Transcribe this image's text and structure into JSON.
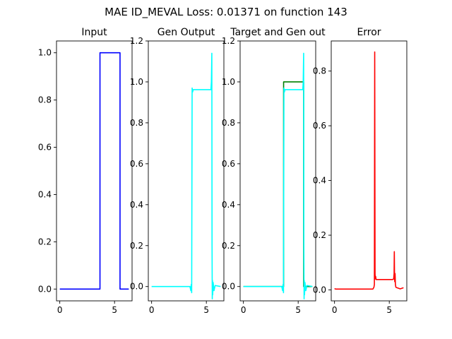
{
  "figure_title": "MAE ID_MEVAL Loss: 0.01371 on function 143",
  "chart_data": [
    {
      "type": "line",
      "title": "Input",
      "xlabel": "",
      "ylabel": "",
      "xlim": [
        -0.3,
        6.6
      ],
      "ylim": [
        -0.05,
        1.05
      ],
      "xticks": [
        0,
        5
      ],
      "xtick_labels": [
        "0",
        "5"
      ],
      "yticks": [
        0.0,
        0.2,
        0.4,
        0.6,
        0.8,
        1.0
      ],
      "ytick_labels": [
        "0.0",
        "0.2",
        "0.4",
        "0.6",
        "0.8",
        "1.0"
      ],
      "grid": false,
      "series": [
        {
          "color": "#0000ff",
          "x": [
            0,
            3.67,
            3.67,
            5.5,
            5.5,
            6.3
          ],
          "y": [
            0,
            0,
            1,
            1,
            0,
            0
          ]
        }
      ]
    },
    {
      "type": "line",
      "title": "Gen Output",
      "xlabel": "",
      "ylabel": "",
      "xlim": [
        -0.3,
        6.6
      ],
      "ylim": [
        -0.07,
        1.2
      ],
      "xticks": [
        0,
        5
      ],
      "xtick_labels": [
        "0",
        "5"
      ],
      "yticks": [
        0.0,
        0.2,
        0.4,
        0.6,
        0.8,
        1.0,
        1.2
      ],
      "ytick_labels": [
        "0.0",
        "0.2",
        "0.4",
        "0.6",
        "0.8",
        "1.0",
        "1.2"
      ],
      "grid": false,
      "series": [
        {
          "color": "#00ffff",
          "x": [
            0,
            3.5,
            3.58,
            3.62,
            3.66,
            3.7,
            3.74,
            3.8,
            3.9,
            5.3,
            5.42,
            5.46,
            5.5,
            5.52,
            5.54,
            5.56,
            5.58,
            5.62,
            5.7,
            5.8,
            6.3
          ],
          "y": [
            0,
            0,
            -0.02,
            0.01,
            -0.03,
            0.97,
            0.95,
            0.962,
            0.962,
            0.962,
            0.962,
            1.0,
            1.14,
            0.2,
            -0.06,
            0.03,
            -0.04,
            0.02,
            -0.02,
            0.005,
            0
          ]
        }
      ]
    },
    {
      "type": "line",
      "title": "Target and Gen out",
      "xlabel": "",
      "ylabel": "",
      "xlim": [
        -0.3,
        6.6
      ],
      "ylim": [
        -0.07,
        1.2
      ],
      "xticks": [
        0,
        5
      ],
      "xtick_labels": [
        "0",
        "5"
      ],
      "yticks": [
        0.0,
        0.2,
        0.4,
        0.6,
        0.8,
        1.0,
        1.2
      ],
      "ytick_labels": [
        "0.0",
        "0.2",
        "0.4",
        "0.6",
        "0.8",
        "1.0",
        "1.2"
      ],
      "grid": false,
      "series": [
        {
          "color": "#008000",
          "x": [
            0,
            3.67,
            3.67,
            5.5,
            5.5,
            6.3
          ],
          "y": [
            0,
            0,
            1,
            1,
            0,
            0
          ]
        },
        {
          "color": "#00ffff",
          "x": [
            0,
            3.5,
            3.58,
            3.62,
            3.66,
            3.7,
            3.74,
            3.8,
            3.9,
            5.3,
            5.42,
            5.46,
            5.5,
            5.52,
            5.54,
            5.56,
            5.58,
            5.62,
            5.7,
            5.8,
            6.3
          ],
          "y": [
            0,
            0,
            -0.02,
            0.01,
            -0.03,
            0.97,
            0.95,
            0.962,
            0.962,
            0.962,
            0.962,
            1.0,
            1.14,
            0.2,
            -0.06,
            0.03,
            -0.04,
            0.02,
            -0.02,
            0.005,
            0
          ]
        }
      ]
    },
    {
      "type": "line",
      "title": "Error",
      "xlabel": "",
      "ylabel": "",
      "xlim": [
        -0.3,
        6.6
      ],
      "ylim": [
        -0.04,
        0.91
      ],
      "xticks": [
        0,
        5
      ],
      "xtick_labels": [
        "0",
        "5"
      ],
      "yticks": [
        0.0,
        0.2,
        0.4,
        0.6,
        0.8
      ],
      "ytick_labels": [
        "0.0",
        "0.2",
        "0.4",
        "0.6",
        "0.8"
      ],
      "grid": false,
      "series": [
        {
          "color": "#ff0000",
          "x": [
            0,
            0.1,
            3.5,
            3.6,
            3.64,
            3.67,
            3.7,
            3.72,
            3.75,
            3.8,
            3.9,
            5.3,
            5.4,
            5.44,
            5.46,
            5.48,
            5.5,
            5.53,
            5.56,
            5.6,
            5.7,
            6.0,
            6.3
          ],
          "y": [
            0.005,
            0.003,
            0.003,
            0.01,
            0.02,
            0.87,
            0.06,
            0.04,
            0.05,
            0.038,
            0.038,
            0.038,
            0.04,
            0.06,
            0.14,
            0.05,
            0.03,
            0.06,
            0.02,
            0.01,
            0.008,
            0.004,
            0.008
          ]
        }
      ]
    }
  ]
}
